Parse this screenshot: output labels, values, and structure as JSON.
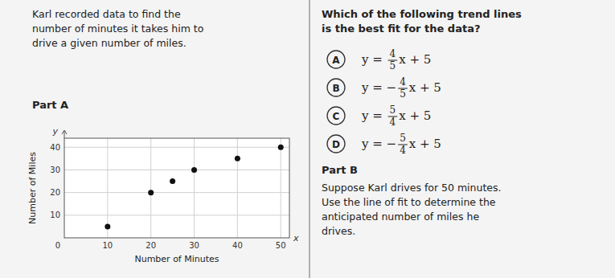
{
  "chart_data": {
    "type": "scatter",
    "title_lines": [
      "Karl recorded data to find the",
      "number of minutes it takes him to",
      "drive a given number of miles."
    ],
    "part_a_label": "Part A",
    "x": [
      10,
      20,
      25,
      30,
      40,
      50
    ],
    "values": [
      5,
      20,
      25,
      30,
      35,
      40
    ],
    "color": "#111111",
    "x_label": "Number of Minutes",
    "y_label": "Number of Miles",
    "xlim": [
      0,
      52
    ],
    "ylim": [
      0,
      44
    ],
    "xticks": [
      10,
      20,
      30,
      40,
      50
    ],
    "yticks": [
      10,
      20,
      30,
      40
    ],
    "grid": true,
    "x_axis_symbol": "x",
    "y_axis_symbol": "y",
    "origin_label": "0",
    "question_lines": [
      "Which of the following trend lines",
      "is the best fit for the data?"
    ],
    "choices": [
      {
        "label": "A",
        "before": "y = ",
        "numerator": "4",
        "denominator": "5",
        "after": "x + 5"
      },
      {
        "label": "B",
        "before": "y = −",
        "numerator": "4",
        "denominator": "5",
        "after": "x + 5"
      },
      {
        "label": "C",
        "before": "y = ",
        "numerator": "5",
        "denominator": "4",
        "after": "x + 5"
      },
      {
        "label": "D",
        "before": "y = −",
        "numerator": "5",
        "denominator": "4",
        "after": "x + 5"
      }
    ],
    "part_b_label": "Part B",
    "part_b_text": "Suppose Karl drives for 50 minutes.\nUse the line of fit to determine the\nanticipated number of miles he\ndrives."
  }
}
